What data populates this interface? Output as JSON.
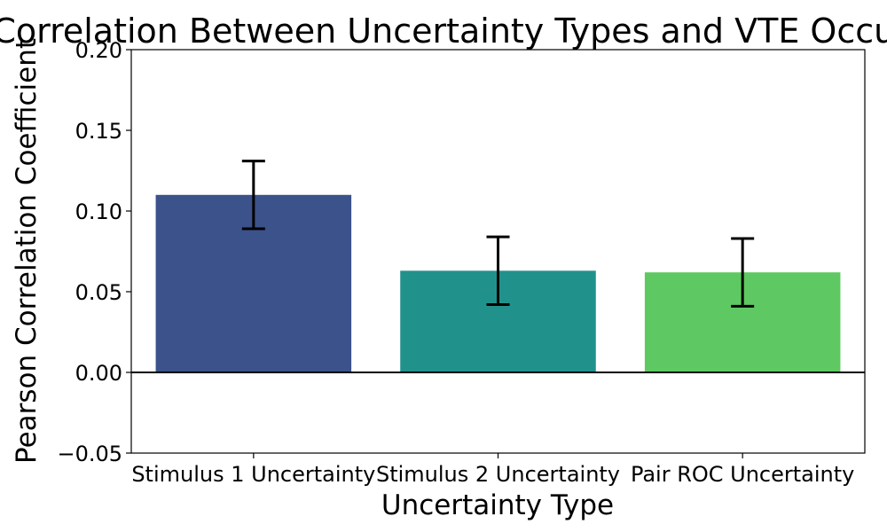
{
  "chart_data": {
    "type": "bar",
    "title": "Correlation Between Uncertainty Types and VTE Occurrence",
    "xlabel": "Uncertainty Type",
    "ylabel": "Pearson Correlation Coefficient",
    "categories": [
      "Stimulus 1 Uncertainty",
      "Stimulus 2 Uncertainty",
      "Pair ROC Uncertainty"
    ],
    "values": [
      0.11,
      0.063,
      0.062
    ],
    "errors": [
      0.021,
      0.021,
      0.021
    ],
    "colors": [
      "#3b528b",
      "#21918c",
      "#5ec962"
    ],
    "ylim": [
      -0.05,
      0.2
    ],
    "yticks": [
      -0.05,
      0.0,
      0.05,
      0.1,
      0.15,
      0.2
    ],
    "ytick_labels": [
      "−0.05",
      "0.00",
      "0.05",
      "0.10",
      "0.15",
      "0.20"
    ],
    "zero_line": true,
    "grid": false,
    "legend": "none"
  }
}
